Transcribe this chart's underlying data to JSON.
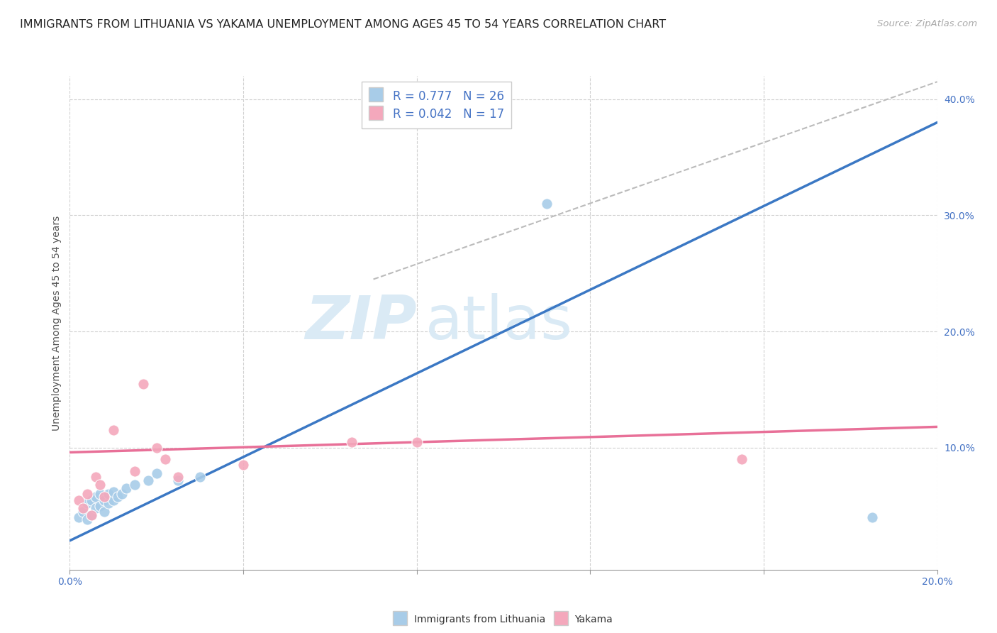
{
  "title": "IMMIGRANTS FROM LITHUANIA VS YAKAMA UNEMPLOYMENT AMONG AGES 45 TO 54 YEARS CORRELATION CHART",
  "source": "Source: ZipAtlas.com",
  "ylabel": "Unemployment Among Ages 45 to 54 years",
  "xlim": [
    0.0,
    0.2
  ],
  "ylim": [
    -0.005,
    0.42
  ],
  "xticks": [
    0.0,
    0.04,
    0.08,
    0.12,
    0.16,
    0.2
  ],
  "yticks": [
    0.1,
    0.2,
    0.3,
    0.4
  ],
  "ytick_labels": [
    "10.0%",
    "20.0%",
    "30.0%",
    "40.0%"
  ],
  "xtick_labels_show": {
    "0.0": "0.0%",
    "0.2": "20.0%"
  },
  "blue_scatter": [
    [
      0.002,
      0.04
    ],
    [
      0.003,
      0.045
    ],
    [
      0.004,
      0.038
    ],
    [
      0.004,
      0.052
    ],
    [
      0.005,
      0.042
    ],
    [
      0.005,
      0.055
    ],
    [
      0.006,
      0.048
    ],
    [
      0.006,
      0.058
    ],
    [
      0.007,
      0.05
    ],
    [
      0.007,
      0.06
    ],
    [
      0.008,
      0.045
    ],
    [
      0.008,
      0.055
    ],
    [
      0.009,
      0.052
    ],
    [
      0.009,
      0.06
    ],
    [
      0.01,
      0.055
    ],
    [
      0.01,
      0.062
    ],
    [
      0.011,
      0.058
    ],
    [
      0.012,
      0.06
    ],
    [
      0.013,
      0.065
    ],
    [
      0.015,
      0.068
    ],
    [
      0.018,
      0.072
    ],
    [
      0.02,
      0.078
    ],
    [
      0.025,
      0.072
    ],
    [
      0.03,
      0.075
    ],
    [
      0.11,
      0.31
    ],
    [
      0.185,
      0.04
    ]
  ],
  "pink_scatter": [
    [
      0.002,
      0.055
    ],
    [
      0.003,
      0.048
    ],
    [
      0.004,
      0.06
    ],
    [
      0.005,
      0.042
    ],
    [
      0.006,
      0.075
    ],
    [
      0.007,
      0.068
    ],
    [
      0.008,
      0.058
    ],
    [
      0.01,
      0.115
    ],
    [
      0.015,
      0.08
    ],
    [
      0.017,
      0.155
    ],
    [
      0.02,
      0.1
    ],
    [
      0.022,
      0.09
    ],
    [
      0.025,
      0.075
    ],
    [
      0.04,
      0.085
    ],
    [
      0.065,
      0.105
    ],
    [
      0.08,
      0.105
    ],
    [
      0.155,
      0.09
    ]
  ],
  "blue_line_x": [
    0.0,
    0.2
  ],
  "blue_line_y": [
    0.02,
    0.38
  ],
  "pink_line_x": [
    0.0,
    0.2
  ],
  "pink_line_y": [
    0.096,
    0.118
  ],
  "dashed_line_x": [
    0.07,
    0.2
  ],
  "dashed_line_y": [
    0.245,
    0.415
  ],
  "legend_r_blue": "R = 0.777",
  "legend_n_blue": "N = 26",
  "legend_r_pink": "R = 0.042",
  "legend_n_pink": "N = 17",
  "blue_color": "#a8cce8",
  "pink_color": "#f4a8bc",
  "blue_line_color": "#3b78c4",
  "pink_line_color": "#e87098",
  "dashed_line_color": "#bbbbbb",
  "grid_color": "#d0d0d0",
  "tick_color": "#4472c4",
  "watermark_color": "#daeaf5",
  "background_color": "#ffffff",
  "title_fontsize": 11.5,
  "label_fontsize": 10,
  "tick_fontsize": 10,
  "legend_fontsize": 12,
  "source_fontsize": 9.5
}
